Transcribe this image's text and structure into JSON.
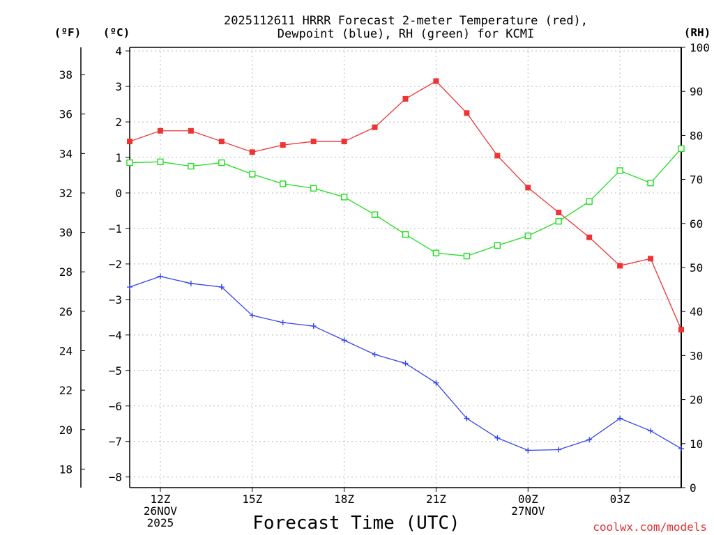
{
  "chart_data": {
    "type": "line",
    "title_line1": "2025112611 HRRR Forecast 2-meter Temperature (red),",
    "title_line2": "Dewpoint (blue), RH (green) for KCMI",
    "unit_left_f": "(ºF)",
    "unit_left_c": "(ºC)",
    "unit_right": "(RH)",
    "xlabel": "Forecast Time (UTC)",
    "watermark": "coolwx.com/models",
    "x_hours": [
      11,
      12,
      13,
      14,
      15,
      16,
      17,
      18,
      19,
      20,
      21,
      22,
      23,
      24,
      25,
      26,
      27,
      28,
      29
    ],
    "xlim": [
      11,
      29
    ],
    "x_ticks": [
      {
        "hour": 12,
        "lines": [
          "12Z",
          "26NOV",
          "2025"
        ]
      },
      {
        "hour": 15,
        "lines": [
          "15Z"
        ]
      },
      {
        "hour": 18,
        "lines": [
          "18Z"
        ]
      },
      {
        "hour": 21,
        "lines": [
          "21Z"
        ]
      },
      {
        "hour": 24,
        "lines": [
          "00Z",
          "27NOV"
        ]
      },
      {
        "hour": 27,
        "lines": [
          "03Z"
        ]
      }
    ],
    "celsius_axis": {
      "ylim": [
        -8.3,
        4.1
      ],
      "ticks": [
        "4",
        "3",
        "2",
        "1",
        "0",
        "−1",
        "−2",
        "−3",
        "−4",
        "−5",
        "−6",
        "−7",
        "−8"
      ]
    },
    "fahrenheit_axis": {
      "ticks": [
        "38",
        "36",
        "34",
        "32",
        "30",
        "28",
        "26",
        "24",
        "22",
        "20",
        "18"
      ]
    },
    "rh_axis": {
      "ylim": [
        0,
        100
      ],
      "ticks": [
        "100",
        "90",
        "80",
        "70",
        "60",
        "50",
        "40",
        "30",
        "20",
        "10",
        "0"
      ]
    },
    "series": [
      {
        "name": "Temperature",
        "unit": "C",
        "color": "#ee3333",
        "values": [
          1.45,
          1.75,
          1.75,
          1.45,
          1.15,
          1.35,
          1.45,
          1.45,
          1.85,
          2.65,
          3.15,
          2.25,
          1.05,
          0.15,
          -0.55,
          -1.25,
          -2.05,
          -1.85,
          -3.85
        ]
      },
      {
        "name": "Dewpoint",
        "unit": "C",
        "color": "#3344ee",
        "values": [
          -2.65,
          -2.35,
          -2.55,
          -2.65,
          -3.45,
          -3.65,
          -3.75,
          -4.15,
          -4.55,
          -4.8,
          -5.35,
          -6.35,
          -6.9,
          -7.25,
          -7.23,
          -6.95,
          -6.35,
          -6.7,
          -7.2
        ]
      },
      {
        "name": "Relative Humidity",
        "unit": "%",
        "color": "#22dd22",
        "values": [
          73.8,
          74.0,
          73.0,
          73.8,
          71.2,
          69.0,
          68.0,
          66.0,
          62.0,
          57.5,
          53.3,
          52.6,
          55.0,
          57.2,
          60.5,
          65.0,
          72.0,
          69.2,
          77.0
        ]
      }
    ]
  }
}
